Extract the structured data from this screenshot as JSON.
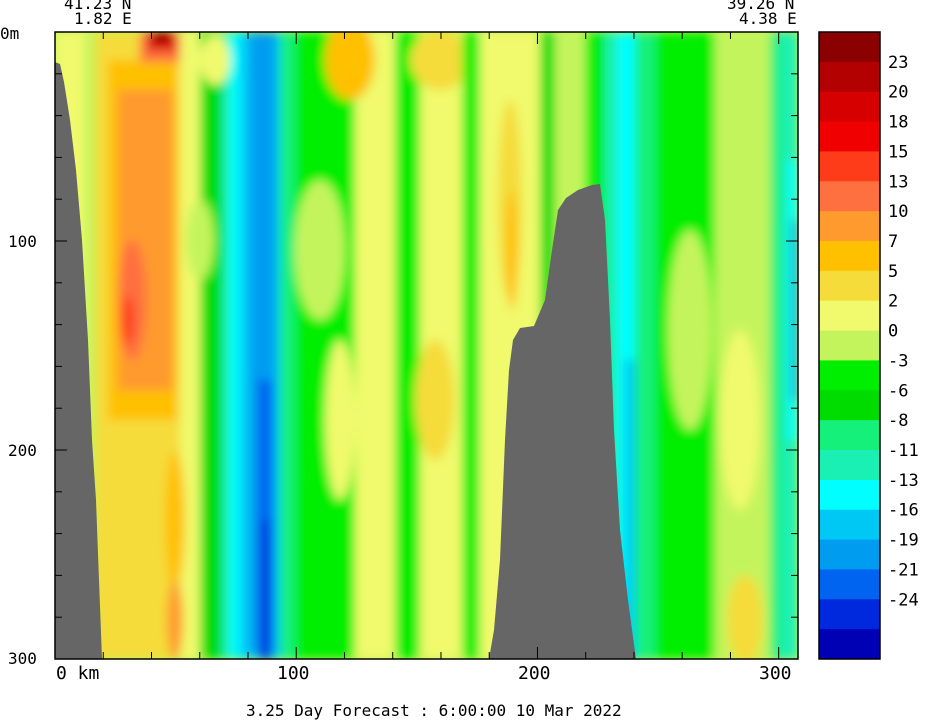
{
  "chart_data": {
    "type": "heatmap",
    "corner_start": {
      "lat": "41.23 N",
      "lon": "1.82 E"
    },
    "corner_end": {
      "lat": "39.26 N",
      "lon": "4.38 E"
    },
    "y_axis": {
      "top_label": "0m",
      "ticks": [
        "100",
        "200",
        "300"
      ],
      "values": [
        100,
        200,
        300
      ],
      "ylim": [
        0,
        300
      ],
      "inverted": true
    },
    "x_axis": {
      "first_label": "0 km",
      "ticks": [
        "100",
        "200",
        "300"
      ],
      "values": [
        100,
        200,
        300
      ],
      "xlim": [
        0,
        308
      ]
    },
    "footer": "3.25 Day Forecast :  6:00:00  10 Mar 2022",
    "land_color": "#666666",
    "colorbar": {
      "labels": [
        "23",
        "20",
        "18",
        "15",
        "13",
        "10",
        "7",
        "5",
        "2",
        "0",
        "-3",
        "-6",
        "-8",
        "-11",
        "-13",
        "-16",
        "-19",
        "-21",
        "-24"
      ],
      "colors": [
        "#8b0000",
        "#b30000",
        "#d60000",
        "#f00000",
        "#ff3c1a",
        "#ff7040",
        "#ff9a2e",
        "#ffc000",
        "#f5dc3a",
        "#f0fa6c",
        "#c4f45c",
        "#00ee00",
        "#00dc00",
        "#14f07a",
        "#1af0b4",
        "#00ffff",
        "#00c8f5",
        "#009cf0",
        "#0064f0",
        "#0028dc",
        "#0000b4"
      ]
    }
  }
}
